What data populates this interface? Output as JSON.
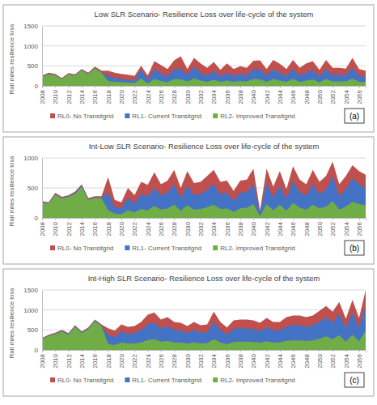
{
  "chart_data": [
    {
      "type": "area",
      "title": "Low SLR Scenario- Resilience Loss over life-cycle of the system",
      "y_label": "Rail miles resilience loss",
      "annotation": "(a)",
      "x": [
        2008,
        2009,
        2010,
        2011,
        2012,
        2013,
        2014,
        2015,
        2016,
        2017,
        2018,
        2019,
        2020,
        2021,
        2022,
        2023,
        2024,
        2025,
        2026,
        2027,
        2028,
        2029,
        2030,
        2031,
        2032,
        2033,
        2034,
        2035,
        2036,
        2037,
        2038,
        2039,
        2040,
        2041,
        2042,
        2043,
        2044,
        2045,
        2046,
        2047,
        2048,
        2049,
        2050,
        2051,
        2052,
        2053,
        2054,
        2055,
        2056,
        2057
      ],
      "xlim": [
        2008,
        2057
      ],
      "xticks": [
        2008,
        2010,
        2012,
        2014,
        2016,
        2018,
        2020,
        2022,
        2024,
        2026,
        2028,
        2030,
        2032,
        2034,
        2036,
        2038,
        2040,
        2042,
        2044,
        2046,
        2048,
        2050,
        2052,
        2054,
        2056
      ],
      "ylim": [
        0,
        1500
      ],
      "yticks": [
        0,
        500,
        1000,
        1500
      ],
      "grid": true,
      "legend": "bottom",
      "stacked": false,
      "series": [
        {
          "name": "RL0- No Transitgrid",
          "color": "#c0504d",
          "values": [
            260,
            330,
            300,
            200,
            320,
            290,
            420,
            330,
            480,
            380,
            380,
            330,
            300,
            280,
            250,
            500,
            260,
            620,
            520,
            420,
            640,
            740,
            420,
            700,
            560,
            450,
            600,
            400,
            560,
            420,
            490,
            450,
            630,
            640,
            420,
            650,
            550,
            420,
            650,
            450,
            560,
            620,
            400,
            650,
            450,
            450,
            430,
            700,
            420,
            380
          ]
        },
        {
          "name": "RL1- Current Transitgrid",
          "color": "#4472c4",
          "values": [
            250,
            300,
            280,
            180,
            300,
            270,
            400,
            300,
            450,
            340,
            250,
            200,
            170,
            150,
            130,
            420,
            150,
            420,
            320,
            230,
            420,
            420,
            280,
            480,
            330,
            250,
            370,
            250,
            320,
            250,
            300,
            270,
            420,
            410,
            260,
            420,
            330,
            250,
            420,
            260,
            330,
            400,
            230,
            420,
            270,
            280,
            270,
            450,
            260,
            230
          ]
        },
        {
          "name": "RL2- Improved Transitgrid",
          "color": "#70ad47",
          "values": [
            240,
            290,
            270,
            170,
            290,
            260,
            390,
            290,
            440,
            330,
            120,
            100,
            90,
            80,
            70,
            180,
            60,
            170,
            120,
            90,
            170,
            160,
            110,
            180,
            130,
            100,
            150,
            100,
            130,
            100,
            120,
            110,
            170,
            160,
            100,
            170,
            130,
            100,
            170,
            100,
            130,
            160,
            90,
            170,
            110,
            110,
            110,
            180,
            100,
            90
          ]
        }
      ]
    },
    {
      "type": "area",
      "title": "Int-Low SLR Scenario- Resilience Loss over life-cycle of the system",
      "y_label": "Rail miles resilience loss",
      "annotation": "(b)",
      "x": [
        2008,
        2009,
        2010,
        2011,
        2012,
        2013,
        2014,
        2015,
        2016,
        2017,
        2018,
        2019,
        2020,
        2021,
        2022,
        2023,
        2024,
        2025,
        2026,
        2027,
        2028,
        2029,
        2030,
        2031,
        2032,
        2033,
        2034,
        2035,
        2036,
        2037,
        2038,
        2039,
        2040,
        2041,
        2042,
        2043,
        2044,
        2045,
        2046,
        2047,
        2048,
        2049,
        2050,
        2051,
        2052,
        2053,
        2054,
        2055,
        2056,
        2057
      ],
      "xlim": [
        2008,
        2057
      ],
      "xticks": [
        2008,
        2010,
        2012,
        2014,
        2016,
        2018,
        2020,
        2022,
        2024,
        2026,
        2028,
        2030,
        2032,
        2034,
        2036,
        2038,
        2040,
        2042,
        2044,
        2046,
        2048,
        2050,
        2052,
        2054,
        2056
      ],
      "ylim": [
        0,
        1000
      ],
      "yticks": [
        0,
        500,
        1000
      ],
      "grid": true,
      "legend": "bottom",
      "stacked": false,
      "series": [
        {
          "name": "RL0- No Transitgrid",
          "color": "#c0504d",
          "values": [
            280,
            260,
            420,
            350,
            380,
            440,
            560,
            330,
            360,
            360,
            680,
            300,
            260,
            500,
            380,
            600,
            550,
            760,
            560,
            620,
            800,
            500,
            780,
            580,
            600,
            700,
            800,
            600,
            620,
            450,
            620,
            640,
            820,
            120,
            820,
            520,
            780,
            480,
            860,
            640,
            560,
            800,
            600,
            700,
            940,
            560,
            700,
            880,
            780,
            720
          ]
        },
        {
          "name": "RL1- Current Transitgrid",
          "color": "#4472c4",
          "values": [
            270,
            250,
            400,
            330,
            360,
            420,
            540,
            310,
            340,
            340,
            420,
            180,
            160,
            330,
            240,
            400,
            360,
            500,
            380,
            420,
            560,
            330,
            540,
            380,
            400,
            470,
            560,
            400,
            420,
            280,
            420,
            430,
            570,
            80,
            580,
            340,
            540,
            310,
            620,
            430,
            370,
            560,
            400,
            480,
            700,
            360,
            480,
            660,
            560,
            500
          ]
        },
        {
          "name": "RL2- Improved Transitgrid",
          "color": "#70ad47",
          "values": [
            260,
            240,
            390,
            320,
            350,
            400,
            520,
            300,
            330,
            330,
            130,
            70,
            60,
            130,
            90,
            150,
            130,
            200,
            140,
            160,
            220,
            120,
            210,
            140,
            150,
            180,
            220,
            150,
            160,
            100,
            160,
            170,
            230,
            30,
            230,
            130,
            220,
            120,
            250,
            170,
            140,
            220,
            160,
            190,
            280,
            140,
            190,
            270,
            230,
            210
          ]
        }
      ]
    },
    {
      "type": "area",
      "title": "Int-High SLR Scenario- Resilience Loss over life-cycle of the system",
      "y_label": "Rail miles resilience loss",
      "annotation": "(c)",
      "x": [
        2008,
        2009,
        2010,
        2011,
        2012,
        2013,
        2014,
        2015,
        2016,
        2017,
        2018,
        2019,
        2020,
        2021,
        2022,
        2023,
        2024,
        2025,
        2026,
        2027,
        2028,
        2029,
        2030,
        2031,
        2032,
        2033,
        2034,
        2035,
        2036,
        2037,
        2038,
        2039,
        2040,
        2041,
        2042,
        2043,
        2044,
        2045,
        2046,
        2047,
        2048,
        2049,
        2050,
        2051,
        2052,
        2053,
        2054,
        2055,
        2056,
        2057
      ],
      "xlim": [
        2008,
        2057
      ],
      "xticks": [
        2008,
        2010,
        2012,
        2014,
        2016,
        2018,
        2020,
        2022,
        2024,
        2026,
        2028,
        2030,
        2032,
        2034,
        2036,
        2038,
        2040,
        2042,
        2044,
        2046,
        2048,
        2050,
        2052,
        2054,
        2056
      ],
      "ylim": [
        0,
        1500
      ],
      "yticks": [
        0,
        500,
        1000,
        1500
      ],
      "grid": true,
      "legend": "bottom",
      "stacked": false,
      "series": [
        {
          "name": "RL0- No Transitgrid",
          "color": "#c0504d",
          "values": [
            300,
            380,
            430,
            500,
            420,
            620,
            460,
            560,
            760,
            640,
            540,
            480,
            640,
            580,
            600,
            700,
            880,
            940,
            760,
            820,
            700,
            680,
            600,
            700,
            620,
            640,
            960,
            700,
            560,
            740,
            760,
            760,
            740,
            680,
            800,
            700,
            700,
            820,
            860,
            860,
            820,
            860,
            980,
            1100,
            960,
            1200,
            780,
            1250,
            800,
            1500
          ]
        },
        {
          "name": "RL1- Current Transitgrid",
          "color": "#4472c4",
          "values": [
            290,
            360,
            410,
            480,
            400,
            600,
            440,
            540,
            740,
            620,
            380,
            320,
            460,
            400,
            420,
            500,
            640,
            680,
            540,
            600,
            500,
            480,
            420,
            500,
            430,
            440,
            700,
            500,
            380,
            530,
            540,
            540,
            520,
            470,
            570,
            490,
            490,
            580,
            620,
            620,
            580,
            620,
            700,
            820,
            680,
            900,
            540,
            940,
            560,
            1100
          ]
        },
        {
          "name": "RL2- Improved Transitgrid",
          "color": "#70ad47",
          "values": [
            280,
            350,
            400,
            460,
            380,
            580,
            420,
            520,
            720,
            600,
            150,
            120,
            180,
            160,
            160,
            190,
            250,
            270,
            210,
            230,
            190,
            180,
            160,
            190,
            160,
            170,
            270,
            190,
            140,
            200,
            210,
            210,
            200,
            180,
            220,
            190,
            190,
            230,
            240,
            240,
            230,
            240,
            280,
            340,
            270,
            370,
            210,
            380,
            220,
            480
          ]
        }
      ]
    }
  ]
}
